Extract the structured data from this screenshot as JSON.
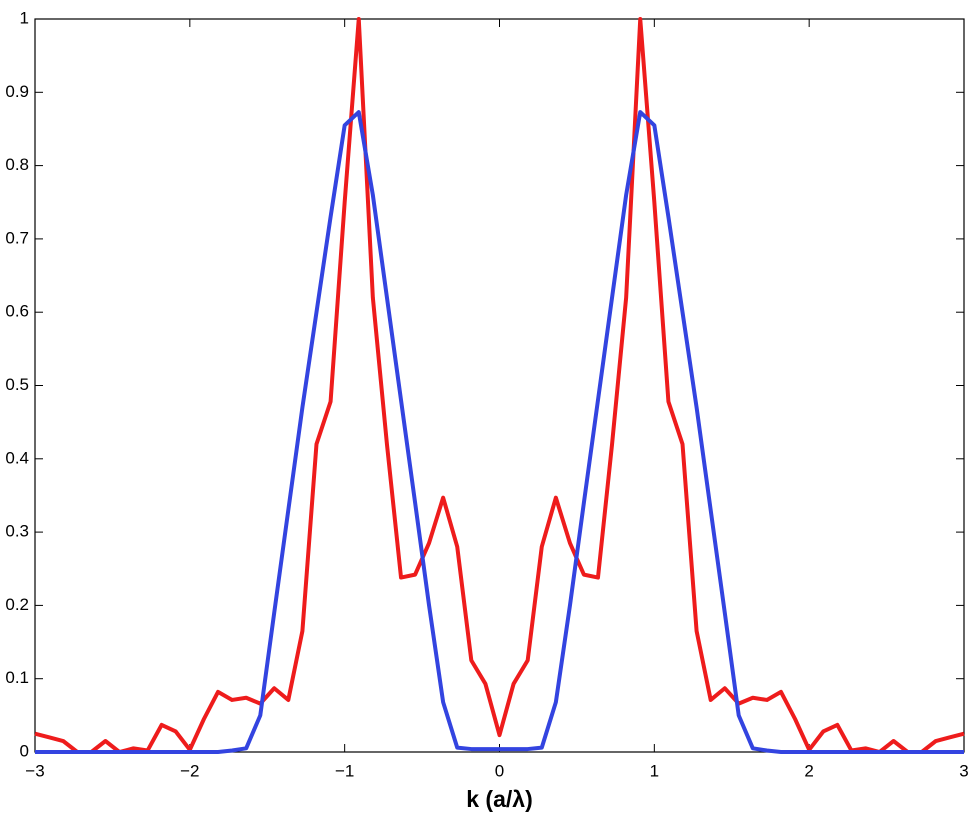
{
  "chart_data": {
    "type": "line",
    "x_label": "k (a/λ)",
    "x": [
      -3,
      -2.909,
      -2.818,
      -2.727,
      -2.636,
      -2.545,
      -2.455,
      -2.364,
      -2.273,
      -2.182,
      -2.091,
      -2,
      -1.909,
      -1.818,
      -1.727,
      -1.636,
      -1.545,
      -1.455,
      -1.364,
      -1.273,
      -1.182,
      -1.091,
      -1,
      -0.909,
      -0.818,
      -0.727,
      -0.636,
      -0.545,
      -0.455,
      -0.364,
      -0.273,
      -0.182,
      -0.091,
      0,
      0.091,
      0.182,
      0.273,
      0.364,
      0.455,
      0.545,
      0.636,
      0.727,
      0.818,
      0.909,
      1,
      1.091,
      1.182,
      1.273,
      1.364,
      1.455,
      1.545,
      1.636,
      1.727,
      1.818,
      1.909,
      2,
      2.091,
      2.182,
      2.273,
      2.364,
      2.455,
      2.545,
      2.636,
      2.727,
      2.818,
      2.909,
      3
    ],
    "series": [
      {
        "color": "#ee1c1c",
        "values": [
          0.025,
          0.02,
          0.015,
          0,
          0,
          0.015,
          0,
          0.005,
          0.002,
          0.037,
          0.028,
          0.003,
          0.045,
          0.082,
          0.071,
          0.074,
          0.066,
          0.087,
          0.071,
          0.165,
          0.42,
          0.478,
          0.75,
          1,
          0.62,
          0.42,
          0.238,
          0.242,
          0.285,
          0.347,
          0.28,
          0.125,
          0.093,
          0.023,
          0.093,
          0.125,
          0.28,
          0.347,
          0.285,
          0.242,
          0.238,
          0.42,
          0.62,
          1,
          0.75,
          0.478,
          0.42,
          0.165,
          0.071,
          0.087,
          0.066,
          0.074,
          0.071,
          0.082,
          0.045,
          0.003,
          0.028,
          0.037,
          0.002,
          0.005,
          0,
          0.015,
          0,
          0,
          0.015,
          0.02,
          0.025
        ]
      },
      {
        "color": "#3344e0",
        "values": [
          0,
          0,
          0,
          0,
          0,
          0,
          0,
          0,
          0,
          0,
          0,
          0,
          0,
          0,
          0.002,
          0.005,
          0.05,
          0.19,
          0.33,
          0.47,
          0.6,
          0.73,
          0.855,
          0.873,
          0.76,
          0.62,
          0.48,
          0.34,
          0.2,
          0.068,
          0.006,
          0.004,
          0.004,
          0.004,
          0.004,
          0.004,
          0.006,
          0.068,
          0.2,
          0.34,
          0.48,
          0.62,
          0.76,
          0.873,
          0.855,
          0.73,
          0.6,
          0.47,
          0.33,
          0.19,
          0.05,
          0.005,
          0.002,
          0,
          0,
          0,
          0,
          0,
          0,
          0,
          0,
          0,
          0,
          0,
          0,
          0,
          0
        ]
      }
    ],
    "xlim": [
      -3,
      3
    ],
    "xticks": [
      {
        "value": -3,
        "label": "−3"
      },
      {
        "value": -2,
        "label": "−2"
      },
      {
        "value": -1,
        "label": "−1"
      },
      0,
      1,
      2,
      3
    ],
    "ylim": [
      0,
      1
    ],
    "yticks": [
      0,
      0.1,
      0.2,
      0.3,
      0.4,
      0.5,
      0.6,
      0.7,
      0.8,
      0.9,
      1
    ],
    "grid": false
  }
}
